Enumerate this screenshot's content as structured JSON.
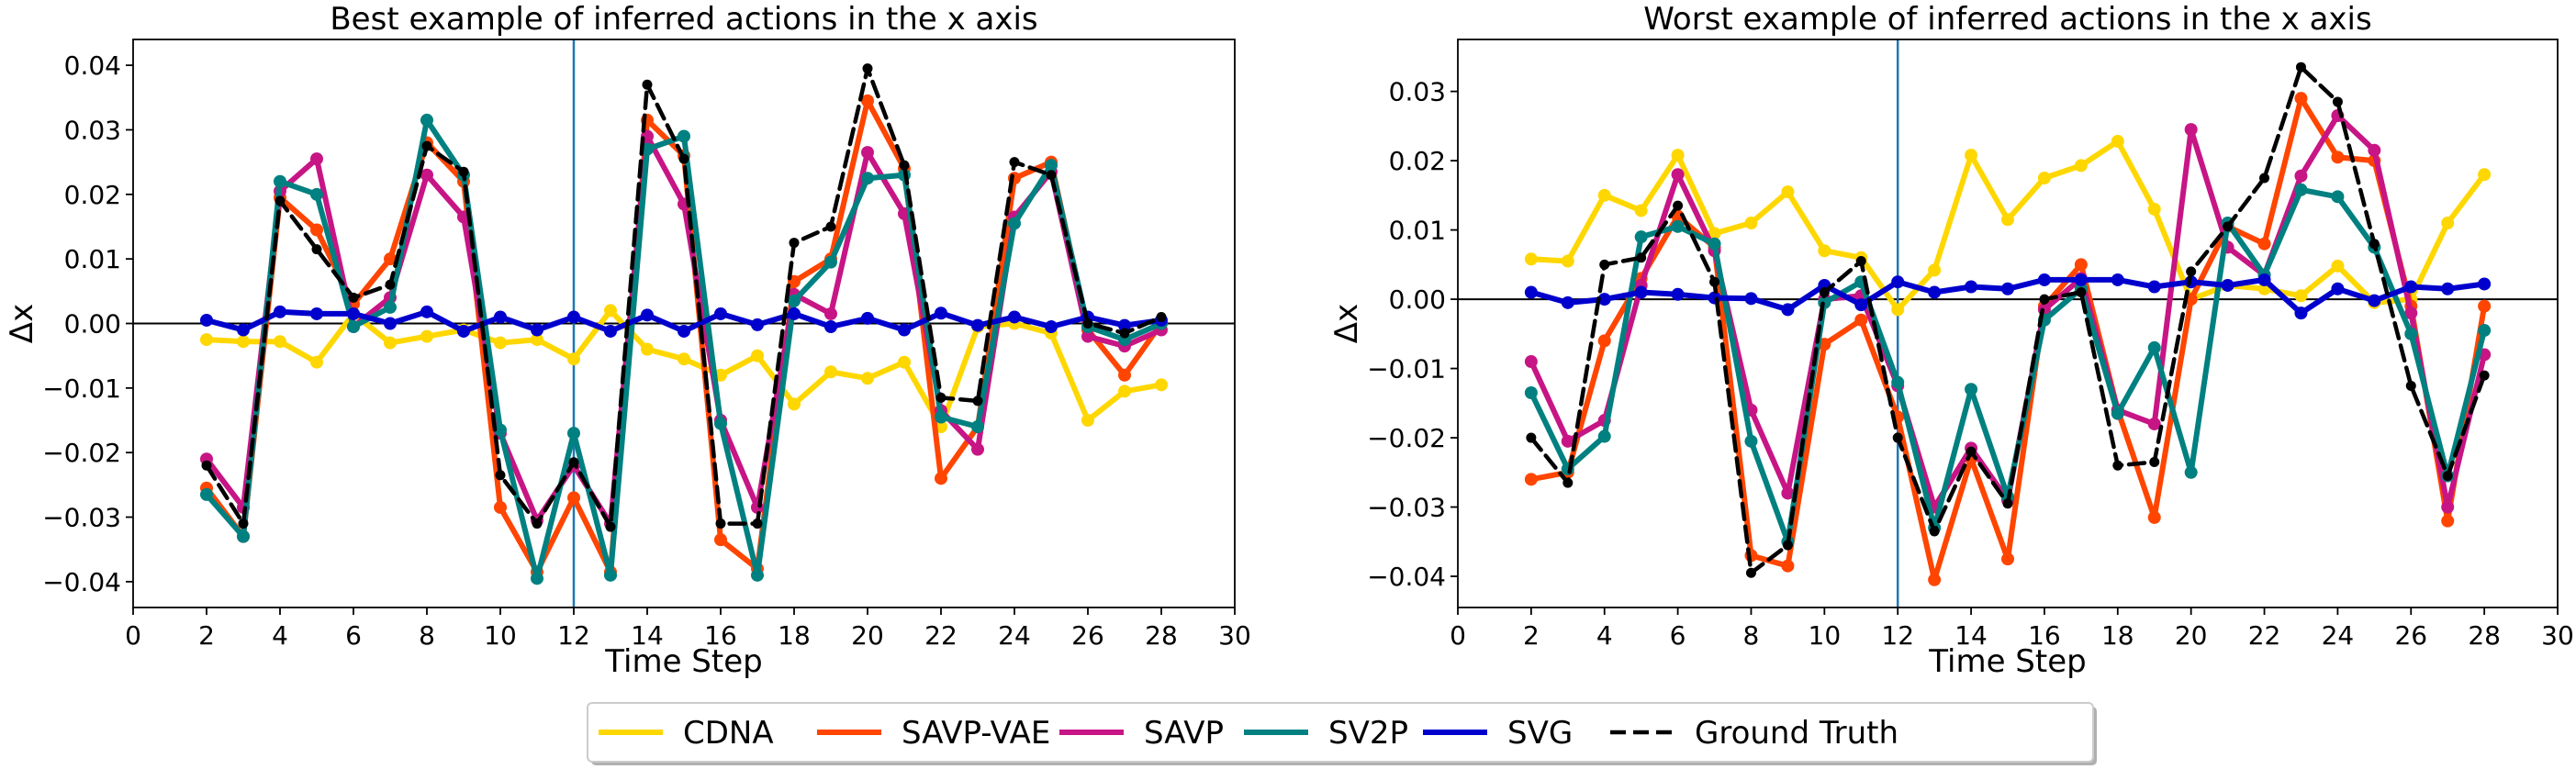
{
  "legend": {
    "entries": [
      {
        "name": "CDNA",
        "color": "#ffd700",
        "dashed": false
      },
      {
        "name": "SAVP-VAE",
        "color": "#ff4500",
        "dashed": false
      },
      {
        "name": "SAVP",
        "color": "#c71585",
        "dashed": false
      },
      {
        "name": "SV2P",
        "color": "#008080",
        "dashed": false
      },
      {
        "name": "SVG",
        "color": "#0000cd",
        "dashed": false
      },
      {
        "name": "Ground Truth",
        "color": "#000000",
        "dashed": true
      }
    ]
  },
  "chart_data": [
    {
      "type": "line",
      "title": "Best example of inferred actions in the x axis",
      "xlabel": "Time Step",
      "ylabel": "Δx",
      "xlim": [
        0,
        30
      ],
      "ylim": [
        -0.044,
        0.044
      ],
      "xticks": [
        0,
        2,
        4,
        6,
        8,
        10,
        12,
        14,
        16,
        18,
        20,
        22,
        24,
        26,
        28,
        30
      ],
      "yticks": [
        -0.04,
        -0.03,
        -0.02,
        -0.01,
        0.0,
        0.01,
        0.02,
        0.03,
        0.04
      ],
      "ytick_labels": [
        "−0.04",
        "−0.03",
        "−0.02",
        "−0.01",
        "0.00",
        "0.01",
        "0.02",
        "0.03",
        "0.04"
      ],
      "vline_x": 12,
      "hline_y": 0,
      "x": [
        2,
        3,
        4,
        5,
        6,
        7,
        8,
        9,
        10,
        11,
        12,
        13,
        14,
        15,
        16,
        17,
        18,
        19,
        20,
        21,
        22,
        23,
        24,
        25,
        26,
        27,
        28
      ],
      "series": [
        {
          "name": "CDNA",
          "values": [
            -0.0025,
            -0.0028,
            -0.0028,
            -0.006,
            0.0015,
            -0.003,
            -0.002,
            -0.001,
            -0.003,
            -0.0025,
            -0.0055,
            0.002,
            -0.004,
            -0.0055,
            -0.008,
            -0.005,
            -0.0125,
            -0.0075,
            -0.0085,
            -0.006,
            -0.016,
            -0.0005,
            0.0,
            -0.0015,
            -0.015,
            -0.0105,
            -0.0095
          ]
        },
        {
          "name": "SAVP-VAE",
          "values": [
            -0.0255,
            -0.033,
            0.0195,
            0.0145,
            0.003,
            0.01,
            0.028,
            0.022,
            -0.0285,
            -0.0385,
            -0.027,
            -0.0385,
            0.0315,
            0.026,
            -0.0335,
            -0.038,
            0.0065,
            0.01,
            0.0345,
            0.024,
            -0.024,
            -0.016,
            0.0225,
            0.025,
            -0.001,
            -0.008,
            0.0
          ]
        },
        {
          "name": "SAVP",
          "values": [
            -0.021,
            -0.0285,
            0.0205,
            0.0255,
            -0.0005,
            0.004,
            0.023,
            0.0165,
            -0.017,
            -0.0305,
            -0.022,
            -0.031,
            0.029,
            0.0185,
            -0.015,
            -0.0285,
            0.0045,
            0.0015,
            0.0265,
            0.017,
            -0.0135,
            -0.0195,
            0.0165,
            0.0235,
            -0.002,
            -0.0035,
            -0.001
          ]
        },
        {
          "name": "SV2P",
          "values": [
            -0.0265,
            -0.033,
            0.022,
            0.02,
            -0.0005,
            0.0025,
            0.0315,
            0.023,
            -0.0165,
            -0.0395,
            -0.017,
            -0.039,
            0.027,
            0.029,
            -0.0155,
            -0.039,
            0.0035,
            0.0095,
            0.0225,
            0.023,
            -0.0145,
            -0.016,
            0.0155,
            0.0245,
            -0.0005,
            -0.0025,
            0.0
          ]
        },
        {
          "name": "SVG",
          "values": [
            0.0005,
            -0.001,
            0.0018,
            0.0015,
            0.0015,
            0.0,
            0.0018,
            -0.0012,
            0.001,
            -0.001,
            0.001,
            -0.0012,
            0.0013,
            -0.0012,
            0.0015,
            -0.0002,
            0.0015,
            -0.0005,
            0.0008,
            -0.001,
            0.0016,
            -0.0003,
            0.001,
            -0.0005,
            0.001,
            -0.0003,
            0.0005
          ]
        },
        {
          "name": "Ground Truth",
          "values": [
            -0.022,
            -0.031,
            0.019,
            0.0115,
            0.004,
            0.006,
            0.0275,
            0.0235,
            -0.0235,
            -0.031,
            -0.0215,
            -0.0315,
            0.037,
            0.0255,
            -0.031,
            -0.031,
            0.0125,
            0.015,
            0.0395,
            0.0245,
            -0.0115,
            -0.012,
            0.025,
            0.023,
            0.0,
            -0.0015,
            0.001
          ]
        }
      ]
    },
    {
      "type": "line",
      "title": "Worst example of inferred actions in the x axis",
      "xlabel": "Time Step",
      "ylabel": "Δx",
      "xlim": [
        0,
        30
      ],
      "ylim": [
        -0.0445,
        0.0375
      ],
      "xticks": [
        0,
        2,
        4,
        6,
        8,
        10,
        12,
        14,
        16,
        18,
        20,
        22,
        24,
        26,
        28,
        30
      ],
      "yticks": [
        -0.04,
        -0.03,
        -0.02,
        -0.01,
        0.0,
        0.01,
        0.02,
        0.03
      ],
      "ytick_labels": [
        "−0.04",
        "−0.03",
        "−0.02",
        "−0.01",
        "0.00",
        "0.01",
        "0.02",
        "0.03"
      ],
      "vline_x": 12,
      "hline_y": 0,
      "x": [
        2,
        3,
        4,
        5,
        6,
        7,
        8,
        9,
        10,
        11,
        12,
        13,
        14,
        15,
        16,
        17,
        18,
        19,
        20,
        21,
        22,
        23,
        24,
        25,
        26,
        27,
        28
      ],
      "series": [
        {
          "name": "CDNA",
          "values": [
            0.0058,
            0.0055,
            0.015,
            0.0128,
            0.0208,
            0.0095,
            0.011,
            0.0155,
            0.007,
            0.006,
            -0.0015,
            0.0042,
            0.0208,
            0.0115,
            0.0175,
            0.0193,
            0.0228,
            0.013,
            0.0,
            0.002,
            0.0015,
            0.0005,
            0.0048,
            -0.0005,
            0.0,
            0.011,
            0.018
          ]
        },
        {
          "name": "SAVP-VAE",
          "values": [
            -0.026,
            -0.025,
            -0.006,
            0.003,
            0.012,
            0.0075,
            -0.037,
            -0.0385,
            -0.0065,
            -0.003,
            -0.017,
            -0.0405,
            -0.023,
            -0.0375,
            -0.001,
            0.005,
            -0.016,
            -0.0315,
            0.0,
            0.0105,
            0.008,
            0.029,
            0.0205,
            0.02,
            -0.001,
            -0.032,
            -0.001
          ]
        },
        {
          "name": "SAVP",
          "values": [
            -0.009,
            -0.0205,
            -0.0175,
            0.002,
            0.018,
            0.007,
            -0.016,
            -0.028,
            0.0,
            0.0005,
            -0.0125,
            -0.03,
            -0.0215,
            -0.029,
            -0.0015,
            0.003,
            -0.016,
            -0.018,
            0.0245,
            0.0075,
            0.0035,
            0.0178,
            0.0265,
            0.0215,
            -0.002,
            -0.03,
            -0.008
          ]
        },
        {
          "name": "SV2P",
          "values": [
            -0.0135,
            -0.0245,
            -0.0198,
            0.009,
            0.0105,
            0.008,
            -0.0205,
            -0.035,
            -0.0005,
            0.0025,
            -0.012,
            -0.033,
            -0.013,
            -0.0285,
            -0.003,
            0.0015,
            -0.0165,
            -0.007,
            -0.025,
            0.011,
            0.0035,
            0.0158,
            0.0148,
            0.0075,
            -0.005,
            -0.0255,
            -0.0045
          ]
        },
        {
          "name": "SVG",
          "values": [
            0.001,
            -0.0005,
            0.0,
            0.001,
            0.0007,
            0.0002,
            0.0001,
            -0.0015,
            0.002,
            -0.0008,
            0.0025,
            0.001,
            0.0018,
            0.0015,
            0.0028,
            0.0028,
            0.0028,
            0.0018,
            0.0025,
            0.002,
            0.0028,
            -0.002,
            0.0015,
            -0.0002,
            0.0018,
            0.0015,
            0.0022
          ]
        },
        {
          "name": "Ground Truth",
          "values": [
            -0.02,
            -0.0265,
            0.005,
            0.006,
            0.0135,
            0.0025,
            -0.0395,
            -0.0355,
            0.001,
            0.0055,
            -0.02,
            -0.0335,
            -0.022,
            -0.0295,
            0.0,
            0.001,
            -0.024,
            -0.0235,
            0.004,
            0.0105,
            0.0175,
            0.0335,
            0.0285,
            0.008,
            -0.0125,
            -0.0255,
            -0.011
          ]
        }
      ]
    }
  ]
}
